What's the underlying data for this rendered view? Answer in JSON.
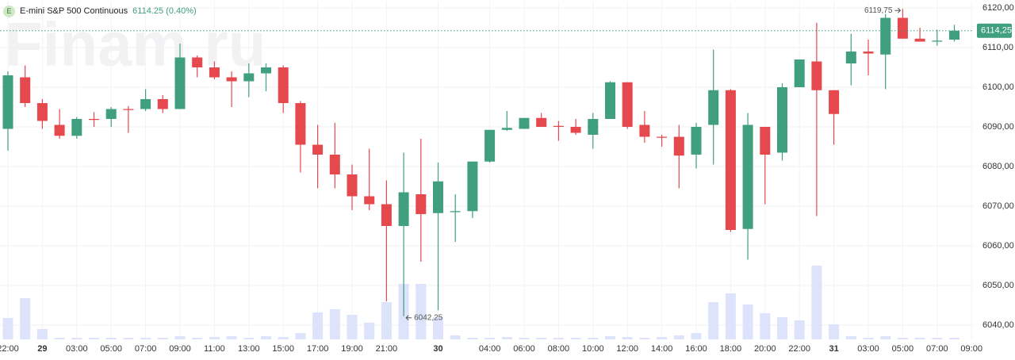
{
  "chart_data": {
    "type": "candlestick",
    "badge": "E",
    "title": "E-mini S&P 500 Continuous",
    "price_text": "6114.25 (0.40%)",
    "watermark": "Finam.ru",
    "up_color": "#3f9f7f",
    "down_color": "#e5484d",
    "volume_color": "#dde3fb",
    "categories": [
      "22:00",
      null,
      "29",
      null,
      "03:00",
      null,
      "05:00",
      null,
      "07:00",
      null,
      "09:00",
      null,
      "11:00",
      null,
      "13:00",
      null,
      "15:00",
      null,
      "17:00",
      null,
      "19:00",
      null,
      "21:00",
      null,
      null,
      "30",
      null,
      null,
      "04:00",
      null,
      "06:00",
      null,
      "08:00",
      null,
      "10:00",
      null,
      "12:00",
      null,
      "14:00",
      null,
      "16:00",
      null,
      "18:00",
      null,
      "20:00",
      null,
      "22:00",
      null,
      "31",
      null,
      "03:00",
      null,
      "05:00",
      null,
      "07:00",
      null,
      "09:00"
    ],
    "open": [
      6089.5,
      6102.5,
      6096,
      6090.5,
      6087.75,
      6092,
      6092,
      6094.5,
      6094.5,
      6097,
      6094.5,
      6107.5,
      6105,
      6102.5,
      6101.5,
      6103.5,
      6105,
      6096,
      6085.5,
      6083,
      6078,
      6072.5,
      6070.5,
      6065,
      6073,
      6068.25,
      6068.5,
      6068.75,
      6081.25,
      6089.25,
      6089.5,
      6092.25,
      6090.25,
      6090,
      6088,
      6092,
      6101.25,
      6090.5,
      6087.5,
      6087.5,
      6083,
      6090.5,
      6099.25,
      6064.25,
      6090,
      6083.5,
      6100,
      6106.5,
      6099.25,
      6106,
      6109,
      6108.25,
      6117.5,
      6112.25,
      6111.5,
      6112,
      null
    ],
    "high": [
      6104,
      6105.5,
      6097,
      6094.5,
      6092.5,
      6093.75,
      6095,
      6095.25,
      6099.5,
      6098,
      6111,
      6108,
      6106.5,
      6104,
      6106,
      6106,
      6105.5,
      6096.5,
      6090.5,
      6091,
      6080.5,
      6084.5,
      6076.5,
      6083.5,
      6087,
      6081,
      6073,
      6081.25,
      6089.25,
      6094,
      6092.25,
      6093.5,
      6091.5,
      6092,
      6093.5,
      6101.5,
      6101.25,
      6094,
      6088,
      6090.5,
      6091,
      6109.5,
      6099.5,
      6093.5,
      6090,
      6101,
      6107,
      6116.25,
      6099.25,
      6113.5,
      6112,
      6118.5,
      6119.75,
      6115,
      6114.5,
      6115.75,
      null
    ],
    "low": [
      6084,
      6095,
      6089.5,
      6087,
      6087,
      6090,
      6090,
      6088.5,
      6094,
      6093.5,
      6094.5,
      6102.5,
      6102,
      6095,
      6097.5,
      6099,
      6093.5,
      6078.5,
      6074.5,
      6074.5,
      6069,
      6069,
      6046,
      6042.25,
      6056,
      6043.75,
      6061,
      6067,
      6081,
      6089,
      6089.5,
      6090,
      6086.5,
      6088,
      6084.5,
      6092,
      6089.5,
      6086,
      6085,
      6074.5,
      6079.5,
      6080.5,
      6063.5,
      6056.5,
      6070.5,
      6081.5,
      6100,
      6067.5,
      6085.5,
      6100.5,
      6103,
      6099.5,
      6112.25,
      6111.5,
      6110.5,
      6111.5,
      null
    ],
    "close": [
      6103,
      6096,
      6091.5,
      6087.75,
      6092,
      6091.75,
      6094.5,
      6094.25,
      6097,
      6094.5,
      6107.5,
      6105,
      6102.5,
      6101.5,
      6103.5,
      6105,
      6096,
      6085.5,
      6083,
      6078,
      6072.5,
      6070.5,
      6065,
      6073.5,
      6068,
      6076.25,
      6068.75,
      6081.25,
      6089.25,
      6089.75,
      6092.25,
      6090,
      6090,
      6088.5,
      6092,
      6101.25,
      6090,
      6087.5,
      6087.25,
      6082.75,
      6090,
      6099.25,
      6064,
      6090.5,
      6083,
      6100,
      6107,
      6099.25,
      6093.25,
      6109,
      6108.5,
      6117.5,
      6112.25,
      6111.5,
      6111.75,
      6114.25,
      null
    ],
    "volume": [
      27,
      52,
      13,
      2,
      2,
      2,
      2,
      2,
      2,
      2,
      4,
      2,
      3,
      4,
      2,
      4,
      3,
      8,
      34,
      38,
      31,
      21,
      47,
      70,
      70,
      28,
      5,
      2,
      2,
      3,
      2,
      2,
      2,
      2,
      2,
      4,
      3,
      2,
      3,
      5,
      8,
      47,
      58,
      44,
      33,
      28,
      24,
      93,
      19,
      4,
      2,
      4,
      2,
      2,
      2,
      2,
      null
    ],
    "volume_lim": [
      0,
      100
    ],
    "ylim": [
      6036.4,
      6121.6
    ],
    "yticks": [
      {
        "value": 6040,
        "label": "6040,00"
      },
      {
        "value": 6050,
        "label": "6050,00"
      },
      {
        "value": 6060,
        "label": "6060,00"
      },
      {
        "value": 6070,
        "label": "6070,00"
      },
      {
        "value": 6080,
        "label": "6080,00"
      },
      {
        "value": 6090,
        "label": "6090,00"
      },
      {
        "value": 6100,
        "label": "6100,00"
      },
      {
        "value": 6110,
        "label": "6110,00"
      },
      {
        "value": 6120,
        "label": "6120,00"
      }
    ],
    "grid": true,
    "last_price": {
      "value": 6114.25,
      "label": "6114,25"
    },
    "high_marker": {
      "value": 6119.75,
      "label": "6119,75"
    },
    "low_marker": {
      "value": 6042.25,
      "label": "6042,25"
    }
  }
}
